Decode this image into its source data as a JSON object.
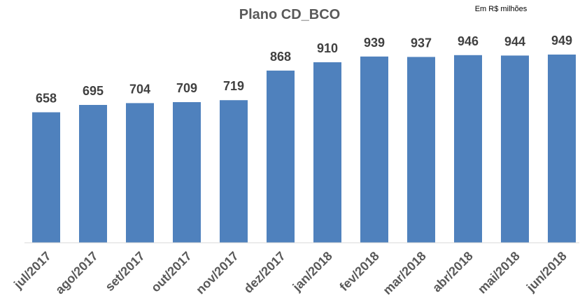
{
  "chart_data": {
    "type": "bar",
    "title": "Plano CD_BCO",
    "unit_note": "Em R$ milhões",
    "categories": [
      "jul/2017",
      "ago/2017",
      "set/2017",
      "out/2017",
      "nov/2017",
      "dez/2017",
      "jan/2018",
      "fev/2018",
      "mar/2018",
      "abr/2018",
      "mai/2018",
      "jun/2018"
    ],
    "values": [
      658,
      695,
      704,
      709,
      719,
      868,
      910,
      939,
      937,
      946,
      944,
      949
    ],
    "ylim": [
      0,
      1000
    ],
    "grid": false,
    "data_labels": true,
    "colors": {
      "bar": "#4F81BD",
      "axis": "#D9D9D9"
    }
  }
}
